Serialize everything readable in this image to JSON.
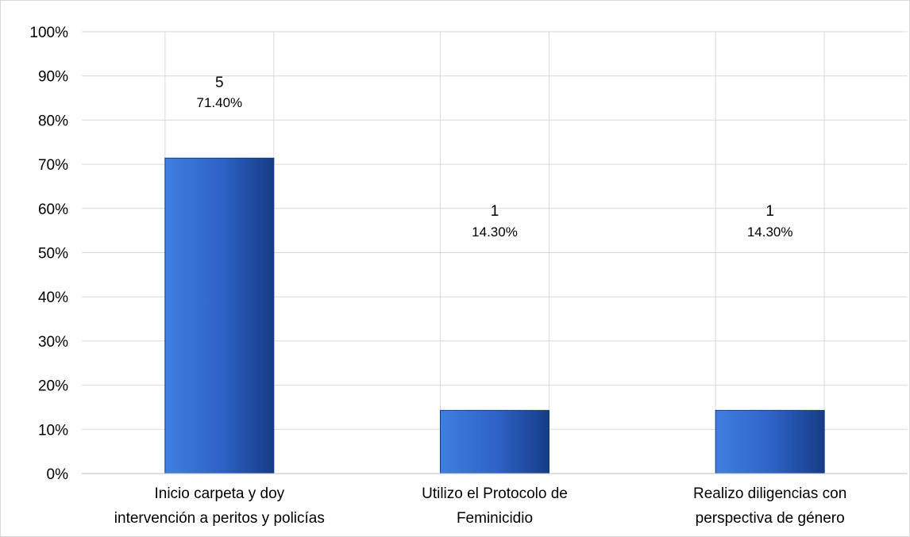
{
  "chart_data": {
    "type": "bar",
    "categories": [
      [
        "Inicio carpeta y doy",
        "intervención a peritos y policías"
      ],
      [
        "Utilizo el Protocolo de",
        "Feminicidio"
      ],
      [
        "Realizo diligencias con",
        "perspectiva de género"
      ]
    ],
    "values": [
      71.4,
      14.3,
      14.3
    ],
    "counts": [
      "5",
      "1",
      "1"
    ],
    "percent_labels": [
      "71.40%",
      "14.30%",
      "14.30%"
    ],
    "ylim": [
      0,
      100
    ],
    "y_ticks": [
      "0%",
      "10%",
      "20%",
      "30%",
      "40%",
      "50%",
      "60%",
      "70%",
      "80%",
      "90%",
      "100%"
    ],
    "grid": true,
    "legend": "none",
    "colors": {
      "bar_light": "#3f7fe0",
      "bar_mid": "#2f64c8",
      "bar_dark": "#163c86",
      "grid": "#d9d9d9",
      "frame": "#d9d9d9"
    }
  }
}
